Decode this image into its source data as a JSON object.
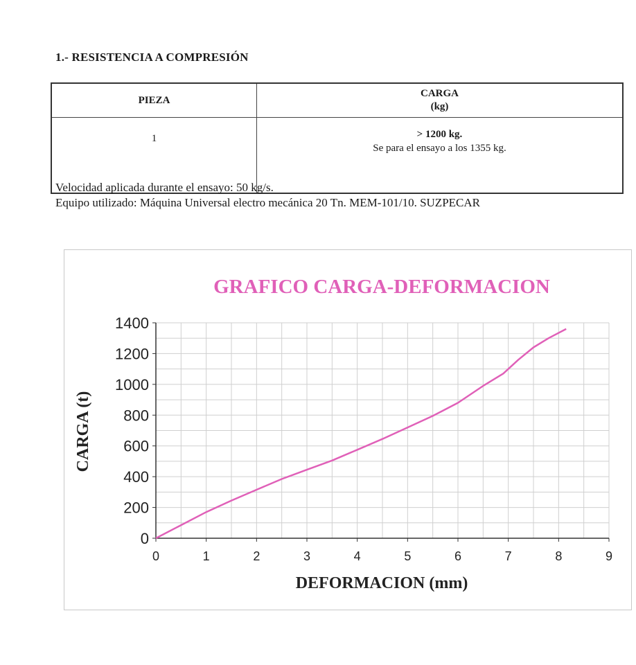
{
  "section": {
    "title": "1.- RESISTENCIA A COMPRESIÓN"
  },
  "table": {
    "headers": {
      "piece": "PIEZA",
      "load_line1": "CARGA",
      "load_line2": "(kg)"
    },
    "rows": [
      {
        "piece": "1",
        "load_main": "> 1200 kg.",
        "load_note": "Se para el ensayo a los 1355 kg."
      }
    ]
  },
  "notes": {
    "speed": "Velocidad aplicada durante el ensayo: 50 kg/s.",
    "equipment": "Equipo utilizado: Máquina Universal electro mecánica 20 Tn. MEM-101/10. SUZPECAR"
  },
  "colors": {
    "series": "#e060b8",
    "title": "#e060b8",
    "grid": "#cfcfcf",
    "axis": "#333333"
  },
  "chart_data": {
    "type": "line",
    "title": "GRAFICO CARGA-DEFORMACION",
    "xlabel": "DEFORMACION (mm)",
    "ylabel": "CARGA (t)",
    "xlim": [
      0,
      9
    ],
    "ylim": [
      0,
      1400
    ],
    "xticks": [
      "0",
      "1",
      "2",
      "3",
      "4",
      "5",
      "6",
      "7",
      "8",
      "9"
    ],
    "yticks": [
      "0",
      "200",
      "400",
      "600",
      "800",
      "1000",
      "1200",
      "1400"
    ],
    "grid": true,
    "series": [
      {
        "x": [
          0,
          0.5,
          1,
          1.5,
          2,
          2.5,
          3,
          3.5,
          4,
          4.5,
          5,
          5.5,
          6,
          6.5,
          6.9,
          7.2,
          7.5,
          7.8,
          8.15
        ],
        "y": [
          0,
          85,
          170,
          245,
          315,
          385,
          445,
          505,
          575,
          645,
          720,
          795,
          880,
          990,
          1070,
          1160,
          1240,
          1300,
          1360
        ]
      }
    ]
  }
}
